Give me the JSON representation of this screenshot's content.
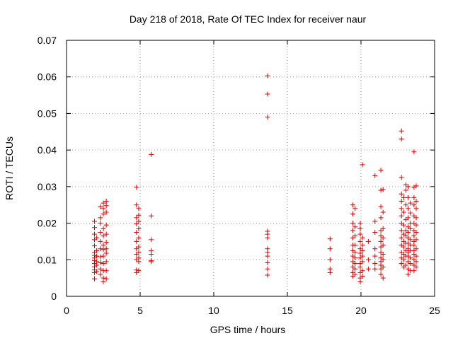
{
  "chart_data": {
    "type": "scatter",
    "title": "Day 218 of 2018, Rate Of TEC Index for receiver naur",
    "xlabel": "GPS time / hours",
    "ylabel": "ROTI / TECUs",
    "xlim": [
      0,
      25
    ],
    "ylim": [
      0,
      0.07
    ],
    "x_ticks": [
      0,
      5,
      10,
      15,
      20,
      25
    ],
    "y_ticks": [
      0,
      0.01,
      0.02,
      0.03,
      0.04,
      0.05,
      0.06,
      0.07
    ],
    "x_tick_labels": [
      "0",
      "5",
      "10",
      "15",
      "20",
      "25"
    ],
    "y_tick_labels": [
      "0",
      "0.01",
      "0.02",
      "0.03",
      "0.04",
      "0.05",
      "0.06",
      "0.07"
    ],
    "grid": true,
    "legend": "none",
    "marker": "plus",
    "color": "#e00000",
    "series": [
      {
        "points": [
          [
            1.9,
            0.0048
          ],
          [
            1.9,
            0.0065
          ],
          [
            1.9,
            0.0072
          ],
          [
            1.9,
            0.0081
          ],
          [
            1.9,
            0.009
          ],
          [
            1.9,
            0.0098
          ],
          [
            1.9,
            0.0105
          ],
          [
            1.9,
            0.0112
          ],
          [
            1.9,
            0.012
          ],
          [
            1.9,
            0.0138
          ],
          [
            1.9,
            0.0155
          ],
          [
            1.9,
            0.017
          ],
          [
            1.9,
            0.0188
          ],
          [
            1.9,
            0.0205
          ],
          [
            2.05,
            0.0068
          ],
          [
            2.05,
            0.0085
          ],
          [
            2.05,
            0.0095
          ],
          [
            2.05,
            0.011
          ],
          [
            2.05,
            0.0125
          ],
          [
            2.05,
            0.016
          ],
          [
            2.3,
            0.006
          ],
          [
            2.3,
            0.0075
          ],
          [
            2.3,
            0.0092
          ],
          [
            2.3,
            0.0108
          ],
          [
            2.3,
            0.013
          ],
          [
            2.3,
            0.015
          ],
          [
            2.3,
            0.0175
          ],
          [
            2.3,
            0.02
          ],
          [
            2.3,
            0.0215
          ],
          [
            2.3,
            0.0245
          ],
          [
            2.5,
            0.004
          ],
          [
            2.5,
            0.005
          ],
          [
            2.5,
            0.007
          ],
          [
            2.5,
            0.009
          ],
          [
            2.5,
            0.011
          ],
          [
            2.5,
            0.0128
          ],
          [
            2.5,
            0.014
          ],
          [
            2.5,
            0.0165
          ],
          [
            2.5,
            0.0185
          ],
          [
            2.5,
            0.0225
          ],
          [
            2.5,
            0.024
          ],
          [
            2.5,
            0.0255
          ],
          [
            2.7,
            0.0048
          ],
          [
            2.7,
            0.007
          ],
          [
            2.7,
            0.0095
          ],
          [
            2.7,
            0.0118
          ],
          [
            2.7,
            0.013
          ],
          [
            2.7,
            0.0148
          ],
          [
            2.7,
            0.017
          ],
          [
            2.7,
            0.0195
          ],
          [
            2.7,
            0.023
          ],
          [
            2.7,
            0.0248
          ],
          [
            2.7,
            0.026
          ],
          [
            4.75,
            0.0065
          ],
          [
            4.75,
            0.0072
          ],
          [
            4.75,
            0.01
          ],
          [
            4.75,
            0.0115
          ],
          [
            4.75,
            0.013
          ],
          [
            4.75,
            0.015
          ],
          [
            4.75,
            0.0175
          ],
          [
            4.75,
            0.0198
          ],
          [
            4.75,
            0.0215
          ],
          [
            4.75,
            0.025
          ],
          [
            4.75,
            0.0298
          ],
          [
            4.9,
            0.007
          ],
          [
            4.9,
            0.0095
          ],
          [
            4.9,
            0.0105
          ],
          [
            4.9,
            0.012
          ],
          [
            4.9,
            0.0135
          ],
          [
            4.9,
            0.016
          ],
          [
            4.9,
            0.0185
          ],
          [
            4.9,
            0.0205
          ],
          [
            4.9,
            0.0222
          ],
          [
            4.9,
            0.024
          ],
          [
            5.75,
            0.0095
          ],
          [
            5.75,
            0.0098
          ],
          [
            5.75,
            0.0115
          ],
          [
            5.75,
            0.0125
          ],
          [
            5.75,
            0.0155
          ],
          [
            5.75,
            0.022
          ],
          [
            5.75,
            0.0388
          ],
          [
            13.65,
            0.0058
          ],
          [
            13.65,
            0.0075
          ],
          [
            13.65,
            0.0092
          ],
          [
            13.65,
            0.011
          ],
          [
            13.65,
            0.012
          ],
          [
            13.65,
            0.013
          ],
          [
            13.65,
            0.016
          ],
          [
            13.65,
            0.017
          ],
          [
            13.65,
            0.0178
          ],
          [
            13.65,
            0.049
          ],
          [
            13.65,
            0.0553
          ],
          [
            13.65,
            0.0603
          ],
          [
            17.9,
            0.0065
          ],
          [
            17.9,
            0.0075
          ],
          [
            17.9,
            0.01
          ],
          [
            17.9,
            0.013
          ],
          [
            17.9,
            0.0157
          ],
          [
            19.45,
            0.0055
          ],
          [
            19.45,
            0.0065
          ],
          [
            19.45,
            0.008
          ],
          [
            19.45,
            0.0095
          ],
          [
            19.45,
            0.011
          ],
          [
            19.45,
            0.0125
          ],
          [
            19.45,
            0.014
          ],
          [
            19.45,
            0.016
          ],
          [
            19.45,
            0.018
          ],
          [
            19.45,
            0.02
          ],
          [
            19.45,
            0.0225
          ],
          [
            19.45,
            0.025
          ],
          [
            19.6,
            0.006
          ],
          [
            19.6,
            0.0075
          ],
          [
            19.6,
            0.009
          ],
          [
            19.6,
            0.0105
          ],
          [
            19.6,
            0.012
          ],
          [
            19.6,
            0.014
          ],
          [
            19.6,
            0.0165
          ],
          [
            19.6,
            0.019
          ],
          [
            19.6,
            0.024
          ],
          [
            19.95,
            0.004
          ],
          [
            19.95,
            0.005
          ],
          [
            19.95,
            0.0065
          ],
          [
            19.95,
            0.008
          ],
          [
            19.95,
            0.009
          ],
          [
            19.95,
            0.0105
          ],
          [
            19.95,
            0.0118
          ],
          [
            19.95,
            0.013
          ],
          [
            19.95,
            0.015
          ],
          [
            19.95,
            0.017
          ],
          [
            19.95,
            0.0185
          ],
          [
            19.95,
            0.02
          ],
          [
            20.1,
            0.0055
          ],
          [
            20.1,
            0.007
          ],
          [
            20.1,
            0.0095
          ],
          [
            20.1,
            0.011
          ],
          [
            20.1,
            0.0125
          ],
          [
            20.1,
            0.014
          ],
          [
            20.1,
            0.016
          ],
          [
            20.1,
            0.036
          ],
          [
            20.5,
            0.0075
          ],
          [
            20.5,
            0.01
          ],
          [
            20.5,
            0.015
          ],
          [
            20.95,
            0.0075
          ],
          [
            20.95,
            0.009
          ],
          [
            20.95,
            0.011
          ],
          [
            20.95,
            0.013
          ],
          [
            20.95,
            0.0175
          ],
          [
            20.95,
            0.0205
          ],
          [
            20.95,
            0.033
          ],
          [
            21.35,
            0.006
          ],
          [
            21.35,
            0.0075
          ],
          [
            21.35,
            0.0085
          ],
          [
            21.35,
            0.0095
          ],
          [
            21.35,
            0.0105
          ],
          [
            21.35,
            0.012
          ],
          [
            21.35,
            0.0135
          ],
          [
            21.35,
            0.015
          ],
          [
            21.35,
            0.0165
          ],
          [
            21.35,
            0.018
          ],
          [
            21.35,
            0.0215
          ],
          [
            21.35,
            0.0245
          ],
          [
            21.35,
            0.029
          ],
          [
            21.35,
            0.0345
          ],
          [
            21.5,
            0.005
          ],
          [
            21.5,
            0.008
          ],
          [
            21.5,
            0.01
          ],
          [
            21.5,
            0.0115
          ],
          [
            21.5,
            0.014
          ],
          [
            21.5,
            0.016
          ],
          [
            21.5,
            0.0185
          ],
          [
            21.5,
            0.023
          ],
          [
            21.5,
            0.0292
          ],
          [
            22.75,
            0.009
          ],
          [
            22.75,
            0.0105
          ],
          [
            22.75,
            0.012
          ],
          [
            22.75,
            0.014
          ],
          [
            22.75,
            0.016
          ],
          [
            22.75,
            0.018
          ],
          [
            22.75,
            0.02
          ],
          [
            22.75,
            0.022
          ],
          [
            22.75,
            0.024
          ],
          [
            22.75,
            0.026
          ],
          [
            22.75,
            0.028
          ],
          [
            22.75,
            0.0325
          ],
          [
            22.75,
            0.043
          ],
          [
            22.75,
            0.0452
          ],
          [
            22.9,
            0.008
          ],
          [
            22.9,
            0.01
          ],
          [
            22.9,
            0.0115
          ],
          [
            22.9,
            0.0135
          ],
          [
            22.9,
            0.015
          ],
          [
            22.9,
            0.017
          ],
          [
            22.9,
            0.0195
          ],
          [
            22.9,
            0.023
          ],
          [
            22.9,
            0.027
          ],
          [
            23.05,
            0.0085
          ],
          [
            23.05,
            0.011
          ],
          [
            23.05,
            0.0125
          ],
          [
            23.05,
            0.0145
          ],
          [
            23.05,
            0.0165
          ],
          [
            23.05,
            0.018
          ],
          [
            23.05,
            0.021
          ],
          [
            23.05,
            0.025
          ],
          [
            23.05,
            0.029
          ],
          [
            23.05,
            0.0305
          ],
          [
            23.2,
            0.006
          ],
          [
            23.2,
            0.0075
          ],
          [
            23.2,
            0.0095
          ],
          [
            23.2,
            0.011
          ],
          [
            23.2,
            0.012
          ],
          [
            23.2,
            0.013
          ],
          [
            23.2,
            0.0145
          ],
          [
            23.2,
            0.016
          ],
          [
            23.2,
            0.0175
          ],
          [
            23.2,
            0.019
          ],
          [
            23.2,
            0.0215
          ],
          [
            23.2,
            0.024
          ],
          [
            23.2,
            0.027
          ],
          [
            23.2,
            0.03
          ],
          [
            23.35,
            0.007
          ],
          [
            23.35,
            0.009
          ],
          [
            23.35,
            0.0105
          ],
          [
            23.35,
            0.0125
          ],
          [
            23.35,
            0.014
          ],
          [
            23.35,
            0.0155
          ],
          [
            23.35,
            0.0185
          ],
          [
            23.35,
            0.02
          ],
          [
            23.35,
            0.0228
          ],
          [
            23.35,
            0.0255
          ],
          [
            23.6,
            0.007
          ],
          [
            23.6,
            0.0085
          ],
          [
            23.6,
            0.01
          ],
          [
            23.6,
            0.0115
          ],
          [
            23.6,
            0.0125
          ],
          [
            23.6,
            0.014
          ],
          [
            23.6,
            0.015
          ],
          [
            23.6,
            0.0165
          ],
          [
            23.6,
            0.018
          ],
          [
            23.6,
            0.02
          ],
          [
            23.6,
            0.022
          ],
          [
            23.6,
            0.025
          ],
          [
            23.6,
            0.027
          ],
          [
            23.6,
            0.0298
          ],
          [
            23.6,
            0.0395
          ],
          [
            23.75,
            0.008
          ],
          [
            23.75,
            0.0095
          ],
          [
            23.75,
            0.011
          ],
          [
            23.75,
            0.013
          ],
          [
            23.75,
            0.0155
          ],
          [
            23.75,
            0.0175
          ],
          [
            23.75,
            0.0195
          ],
          [
            23.75,
            0.0215
          ],
          [
            23.75,
            0.024
          ],
          [
            23.75,
            0.026
          ],
          [
            23.75,
            0.0302
          ]
        ]
      }
    ]
  }
}
